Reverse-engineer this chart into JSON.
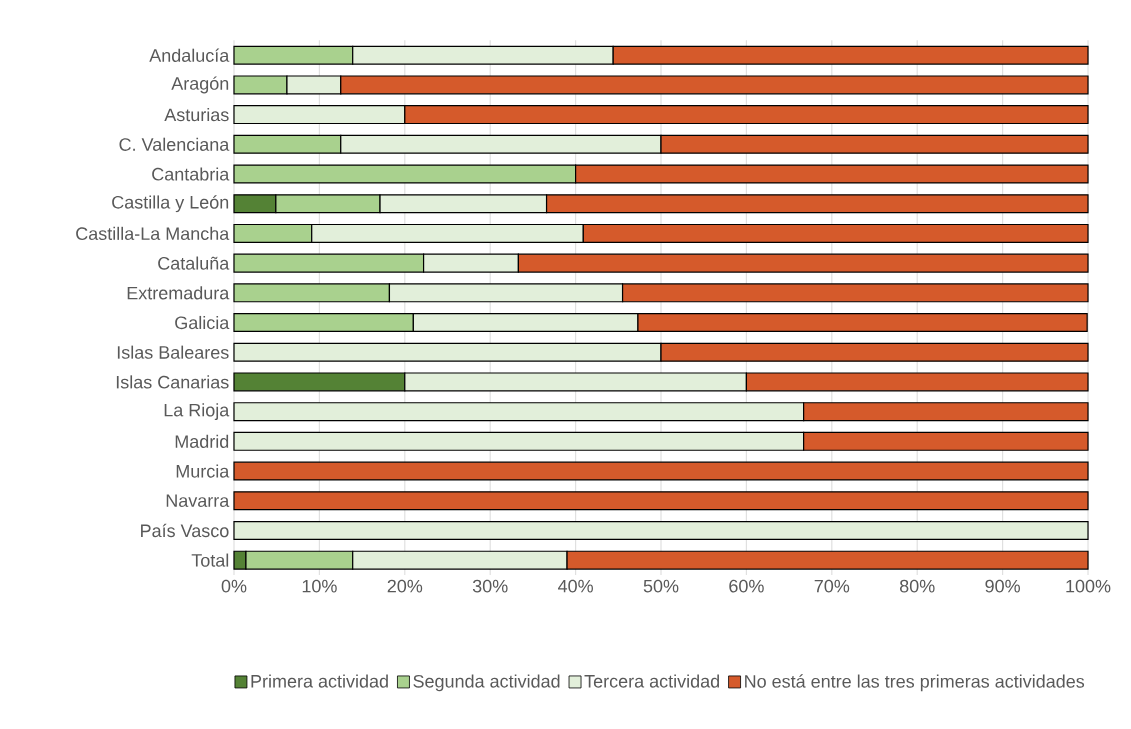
{
  "chart_data": {
    "type": "bar",
    "orientation": "horizontal",
    "stacked": true,
    "categories": [
      "Andalucía",
      "Aragón",
      "Asturias",
      "C. Valenciana",
      "Cantabria",
      "Castilla y León",
      "Castilla-La Mancha",
      "Cataluña",
      "Extremadura",
      "Galicia",
      "Islas Baleares",
      "Islas Canarias",
      "La Rioja",
      "Madrid",
      "Murcia",
      "Navarra",
      "País Vasco",
      "Total"
    ],
    "series": [
      {
        "name": "Primera actividad",
        "color": "#548235",
        "values": [
          0,
          0,
          0,
          0,
          0,
          4.9,
          0,
          0,
          0,
          0,
          0,
          20,
          0,
          0,
          0,
          0,
          0,
          1.4
        ]
      },
      {
        "name": "Segunda actividad",
        "color": "#a9d18e",
        "values": [
          13.9,
          6.2,
          0,
          12.5,
          40,
          12.2,
          9.1,
          22.2,
          18.2,
          21.0,
          0,
          0,
          0,
          0,
          0,
          0,
          0,
          12.5
        ]
      },
      {
        "name": "Tercera actividad",
        "color": "#e2efda",
        "values": [
          30.5,
          6.3,
          20,
          37.5,
          0,
          19.5,
          31.8,
          11.1,
          27.3,
          26.3,
          50,
          40,
          66.7,
          66.7,
          0,
          0,
          100,
          25.1
        ]
      },
      {
        "name": "No está entre las tres primeras actividades",
        "color": "#d55a2b",
        "values": [
          55.6,
          87.5,
          80,
          50,
          60,
          63.4,
          59.1,
          66.7,
          54.5,
          52.6,
          50,
          40,
          33.3,
          33.3,
          100,
          100,
          0,
          61.0
        ]
      }
    ],
    "xlim": [
      0,
      100
    ],
    "xticks": [
      {
        "value": 0,
        "label": "0%"
      },
      {
        "value": 10,
        "label": "10%"
      },
      {
        "value": 20,
        "label": "20%"
      },
      {
        "value": 30,
        "label": "30%"
      },
      {
        "value": 40,
        "label": "40%"
      },
      {
        "value": 50,
        "label": "50%"
      },
      {
        "value": 60,
        "label": "60%"
      },
      {
        "value": 70,
        "label": "70%"
      },
      {
        "value": 80,
        "label": "80%"
      },
      {
        "value": 90,
        "label": "90%"
      },
      {
        "value": 100,
        "label": "100%"
      }
    ],
    "grid": "x",
    "legend": "bottom"
  }
}
